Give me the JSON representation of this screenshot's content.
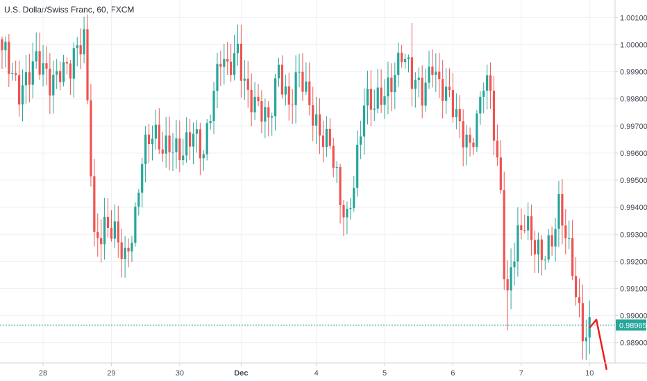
{
  "chart_data": {
    "type": "candlestick",
    "title": "U.S. Dollar/Swiss Franc, 60, FXCM",
    "ylim": [
      0.98825,
      1.00165
    ],
    "y_ticks": [
      {
        "value": 1.001,
        "label": "1.00100"
      },
      {
        "value": 1.0,
        "label": "1.00000"
      },
      {
        "value": 0.999,
        "label": "0.99900"
      },
      {
        "value": 0.998,
        "label": "0.99800"
      },
      {
        "value": 0.997,
        "label": "0.99700"
      },
      {
        "value": 0.996,
        "label": "0.99600"
      },
      {
        "value": 0.995,
        "label": "0.99500"
      },
      {
        "value": 0.994,
        "label": "0.99400"
      },
      {
        "value": 0.993,
        "label": "0.99300"
      },
      {
        "value": 0.992,
        "label": "0.99200"
      },
      {
        "value": 0.991,
        "label": "0.99100"
      },
      {
        "value": 0.99,
        "label": "0.99000"
      },
      {
        "value": 0.989,
        "label": "0.98900"
      }
    ],
    "x_ticks": [
      {
        "bar": 12,
        "label": "28",
        "bold": false
      },
      {
        "bar": 32,
        "label": "29",
        "bold": false
      },
      {
        "bar": 52,
        "label": "30",
        "bold": false
      },
      {
        "bar": 70,
        "label": "Dec",
        "bold": true
      },
      {
        "bar": 92,
        "label": "4",
        "bold": false
      },
      {
        "bar": 112,
        "label": "5",
        "bold": false
      },
      {
        "bar": 132,
        "label": "6",
        "bold": false
      },
      {
        "bar": 152,
        "label": "7",
        "bold": false
      },
      {
        "bar": 172,
        "label": "10",
        "bold": false
      }
    ],
    "bar_count": 185,
    "grid": true,
    "current_price": {
      "value": 0.98965,
      "label": "0.98965"
    },
    "up_color": "#26a69a",
    "down_color": "#ef5350",
    "projection_color": "#ef1c1c",
    "price_line_color": "#26a69a",
    "anchors": [
      [
        0,
        0.9998
      ],
      [
        5,
        0.9985
      ],
      [
        10,
        0.9992
      ],
      [
        14,
        0.9987
      ],
      [
        17,
        0.9993
      ],
      [
        20,
        0.999
      ],
      [
        24,
        1.0002
      ],
      [
        26,
        0.9958
      ],
      [
        27,
        0.993
      ],
      [
        30,
        0.9932
      ],
      [
        33,
        0.9928
      ],
      [
        36,
        0.9922
      ],
      [
        39,
        0.9938
      ],
      [
        41,
        0.9958
      ],
      [
        44,
        0.9965
      ],
      [
        47,
        0.9963
      ],
      [
        49,
        0.9966
      ],
      [
        53,
        0.9958
      ],
      [
        56,
        0.9966
      ],
      [
        59,
        0.9962
      ],
      [
        61,
        0.9978
      ],
      [
        64,
        0.9994
      ],
      [
        66,
        0.9988
      ],
      [
        69,
        0.9999
      ],
      [
        72,
        0.9983
      ],
      [
        75,
        0.9975
      ],
      [
        78,
        0.997
      ],
      [
        81,
        0.9994
      ],
      [
        84,
        0.9978
      ],
      [
        87,
        0.9987
      ],
      [
        90,
        0.9978
      ],
      [
        93,
        0.997
      ],
      [
        96,
        0.9963
      ],
      [
        99,
        0.994
      ],
      [
        101,
        0.9935
      ],
      [
        103,
        0.9952
      ],
      [
        106,
        0.998
      ],
      [
        109,
        0.9975
      ],
      [
        112,
        0.9982
      ],
      [
        115,
        0.9992
      ],
      [
        117,
        0.9998
      ],
      [
        120,
        0.9985
      ],
      [
        123,
        0.9982
      ],
      [
        126,
        0.9996
      ],
      [
        128,
        0.9985
      ],
      [
        131,
        0.9978
      ],
      [
        134,
        0.997
      ],
      [
        137,
        0.9965
      ],
      [
        139,
        0.9972
      ],
      [
        141,
        0.9985
      ],
      [
        143,
        0.998
      ],
      [
        145,
        0.9955
      ],
      [
        146,
        0.9948
      ],
      [
        147,
        0.992
      ],
      [
        148,
        0.9908
      ],
      [
        149,
        0.992
      ],
      [
        151,
        0.9928
      ],
      [
        153,
        0.9932
      ],
      [
        156,
        0.9926
      ],
      [
        158,
        0.9925
      ],
      [
        161,
        0.9928
      ],
      [
        163,
        0.9938
      ],
      [
        165,
        0.9928
      ],
      [
        167,
        0.9918
      ],
      [
        168,
        0.991
      ],
      [
        169,
        0.9903
      ],
      [
        170,
        0.98965
      ],
      [
        171,
        0.98945
      ],
      [
        172,
        0.98955
      ]
    ],
    "projection": [
      [
        172,
        0.98955
      ],
      [
        174,
        0.98985
      ],
      [
        177,
        0.988
      ]
    ]
  }
}
